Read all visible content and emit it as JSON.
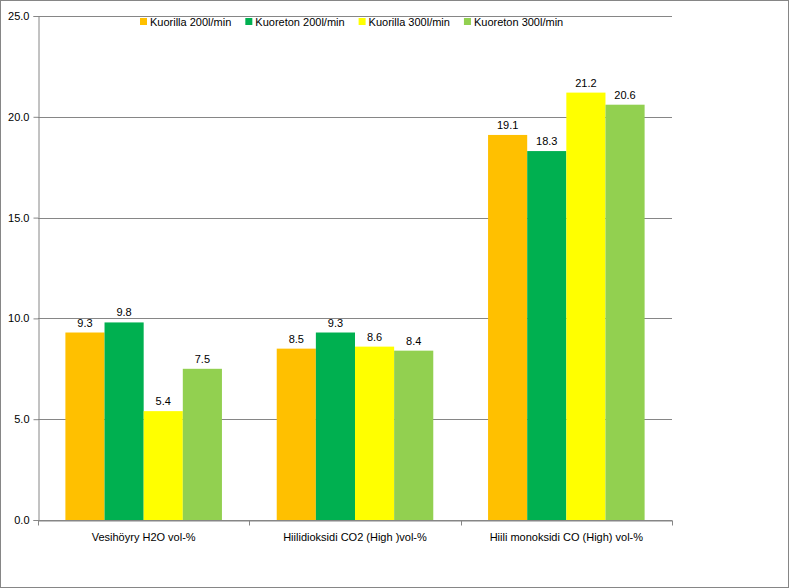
{
  "chart_data": {
    "type": "bar",
    "categories": [
      "Vesihöyry H2O vol-%",
      "Hiilidioksidi CO2 (High )vol-%",
      "Hiili monoksidi CO (High) vol-%"
    ],
    "series": [
      {
        "name": "Kuorilla 200l/min",
        "color": "#ffc000",
        "values": [
          9.3,
          8.5,
          19.1
        ]
      },
      {
        "name": "Kuoreton 200l/min",
        "color": "#00b050",
        "values": [
          9.8,
          9.3,
          18.3
        ]
      },
      {
        "name": "Kuorilla 300l/min",
        "color": "#ffff00",
        "values": [
          5.4,
          8.6,
          21.2
        ]
      },
      {
        "name": "Kuoreton 300l/min",
        "color": "#92d050",
        "values": [
          7.5,
          8.4,
          20.6
        ]
      }
    ],
    "ylim": [
      0,
      25
    ],
    "yticks": [
      {
        "value": 0,
        "label": "0.0"
      },
      {
        "value": 5,
        "label": "5.0"
      },
      {
        "value": 10,
        "label": "10.0"
      },
      {
        "value": 15,
        "label": "15.0"
      },
      {
        "value": 20,
        "label": "20.0"
      },
      {
        "value": 25,
        "label": "25.0"
      }
    ],
    "grid": true,
    "legend": "top",
    "data_labels": true
  }
}
